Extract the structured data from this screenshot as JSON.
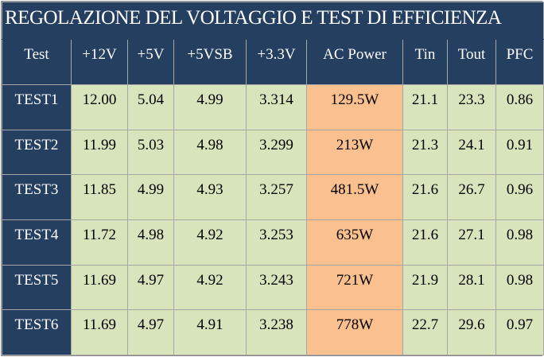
{
  "title": "REGOLAZIONE DEL VOLTAGGIO E TEST DI EFFICIENZA",
  "colors": {
    "header": "#243f60",
    "cells": "#d7e4bc",
    "ac_power": "#fac090"
  },
  "chart_data": {
    "type": "table",
    "title": "REGOLAZIONE DEL VOLTAGGIO E TEST DI EFFICIENZA",
    "columns": [
      "Test",
      "+12V",
      "+5V",
      "+5VSB",
      "+3.3V",
      "AC Power",
      "Tin",
      "Tout",
      "PFC"
    ],
    "rows": [
      [
        "TEST1",
        "12.00",
        "5.04",
        "4.99",
        "3.314",
        "129.5W",
        "21.1",
        "23.3",
        "0.86"
      ],
      [
        "TEST2",
        "11.99",
        "5.03",
        "4.98",
        "3.299",
        "213W",
        "21.3",
        "24.1",
        "0.91"
      ],
      [
        "TEST3",
        "11.85",
        "4.99",
        "4.93",
        "3.257",
        "481.5W",
        "21.6",
        "26.7",
        "0.96"
      ],
      [
        "TEST4",
        "11.72",
        "4.98",
        "4.92",
        "3.253",
        "635W",
        "21.6",
        "27.1",
        "0.98"
      ],
      [
        "TEST5",
        "11.69",
        "4.97",
        "4.92",
        "3.243",
        "721W",
        "21.9",
        "28.1",
        "0.98"
      ],
      [
        "TEST6",
        "11.69",
        "4.97",
        "4.91",
        "3.238",
        "778W",
        "22.7",
        "29.6",
        "0.97"
      ]
    ]
  }
}
